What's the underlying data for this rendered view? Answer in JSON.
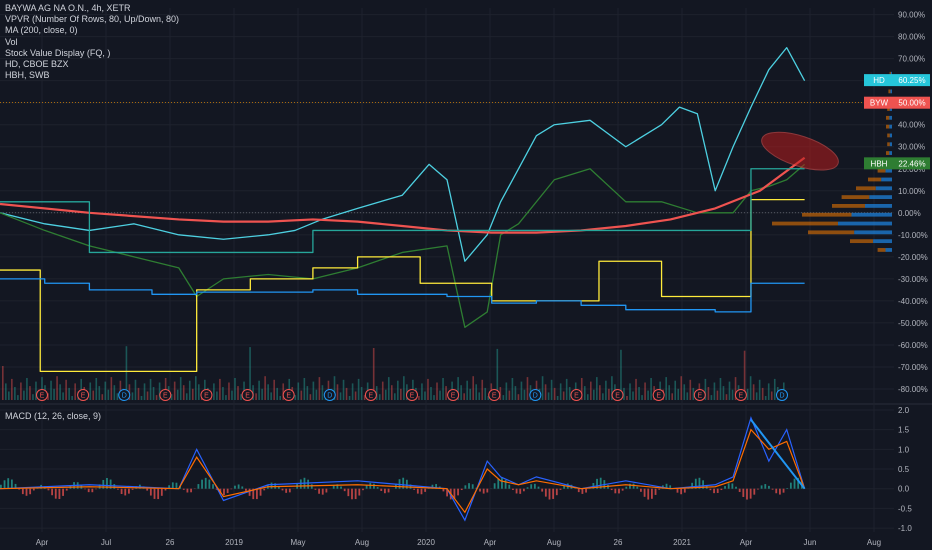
{
  "legend": {
    "title": "BAYWA AG NA O.N., 4h, XETR",
    "vpvr": "VPVR (Number Of Rows, 80, Up/Down, 80)",
    "ma": "MA (200, close, 0)",
    "vol": "Vol",
    "svd": "Stock Value Display (FQ, )",
    "hd": "HD, CBOE BZX",
    "hbh": "HBH, SWB"
  },
  "macd_legend": "MACD (12, 26, close, 9)",
  "colors": {
    "background": "#131722",
    "grid": "#1e222d",
    "baywa_line": "#2962ff",
    "ma": "#ef5350",
    "hd": "#4dd0e1",
    "hbh": "#2e7d32",
    "svd_yellow": "#ffeb3b",
    "svd_green": "#26a69a",
    "svd_blue": "#2196f3",
    "macd_line": "#2962ff",
    "signal_line": "#ff6d00",
    "hist_up": "#26a69a",
    "hist_down": "#ef5350",
    "callout": "#b71c1c"
  },
  "chart_data": [
    {
      "type": "line",
      "subtype": "percent-comparison",
      "y_axis_ticks": [
        "90.00%",
        "80.00%",
        "70.00%",
        "60.00%",
        "50.00%",
        "40.00%",
        "30.00%",
        "20.00%",
        "10.00%",
        "0.00%",
        "-10.00%",
        "-20.00%",
        "-30.00%",
        "-40.00%",
        "-50.00%",
        "-60.00%",
        "-70.00%",
        "-80.00%"
      ],
      "ylim": [
        -85,
        93
      ],
      "x_tick_labels": [
        "Apr",
        "Jul",
        "26",
        "2019",
        "May",
        "Aug",
        "2020",
        "Apr",
        "Aug",
        "26",
        "2021",
        "Apr",
        "Jun",
        "Aug"
      ],
      "last_value_tags": [
        {
          "label": "HD",
          "value": "60.25%",
          "y": 60.25
        },
        {
          "label": "BYW",
          "value": "50.00%",
          "y": 50.0
        },
        {
          "label": "HBH",
          "value": "22.46%",
          "y": 22.46
        }
      ],
      "series": [
        {
          "name": "HD",
          "key": "hd",
          "x": [
            0,
            0.05,
            0.1,
            0.15,
            0.2,
            0.25,
            0.3,
            0.33,
            0.36,
            0.4,
            0.45,
            0.48,
            0.5,
            0.52,
            0.545,
            0.56,
            0.58,
            0.6,
            0.62,
            0.66,
            0.7,
            0.74,
            0.76,
            0.78,
            0.8,
            0.82,
            0.84,
            0.86,
            0.88,
            0.9
          ],
          "values": [
            0,
            -5,
            -8,
            -5,
            -10,
            -12,
            -10,
            -8,
            -3,
            2,
            8,
            22,
            15,
            -22,
            -10,
            5,
            20,
            35,
            40,
            42,
            30,
            40,
            48,
            45,
            10,
            30,
            48,
            65,
            75,
            60
          ]
        },
        {
          "name": "HBH",
          "key": "hbh",
          "x": [
            0,
            0.05,
            0.1,
            0.15,
            0.2,
            0.22,
            0.25,
            0.3,
            0.35,
            0.4,
            0.45,
            0.5,
            0.52,
            0.545,
            0.56,
            0.58,
            0.62,
            0.66,
            0.7,
            0.74,
            0.78,
            0.82,
            0.84,
            0.86,
            0.88,
            0.9
          ],
          "values": [
            0,
            -8,
            -15,
            -20,
            -25,
            -38,
            -30,
            -28,
            -30,
            -25,
            -18,
            -15,
            -52,
            -45,
            -10,
            -5,
            15,
            20,
            5,
            5,
            0,
            0,
            10,
            12,
            15,
            22
          ]
        },
        {
          "name": "MA (200, close, 0)",
          "key": "ma",
          "x": [
            0,
            0.1,
            0.2,
            0.25,
            0.3,
            0.35,
            0.4,
            0.45,
            0.5,
            0.55,
            0.6,
            0.65,
            0.7,
            0.75,
            0.8,
            0.85,
            0.9
          ],
          "values": [
            4,
            0,
            -3,
            -4,
            -4,
            -3,
            -4,
            -6,
            -8,
            -9,
            -9,
            -8,
            -6,
            -3,
            2,
            10,
            25
          ]
        },
        {
          "name": "Stock Value Display yellow",
          "key": "svd_yellow",
          "x": [
            0,
            0.04,
            0.045,
            0.16,
            0.22,
            0.28,
            0.35,
            0.4,
            0.45,
            0.47,
            0.55,
            0.6,
            0.65,
            0.67,
            0.72,
            0.74,
            0.8,
            0.82,
            0.84,
            0.86,
            0.9
          ],
          "values": [
            -26,
            -26,
            -72,
            -72,
            -35,
            -30,
            -25,
            -20,
            -20,
            -32,
            -40,
            -40,
            -40,
            -22,
            -22,
            -38,
            -38,
            -38,
            6,
            6,
            6
          ],
          "step": true
        },
        {
          "name": "Stock Value Display green",
          "key": "svd_green",
          "x": [
            0,
            0.1,
            0.1,
            0.2,
            0.23,
            0.35,
            0.35,
            0.55,
            0.6,
            0.7,
            0.8,
            0.84,
            0.84,
            0.9
          ],
          "values": [
            5,
            5,
            -18,
            -18,
            -18,
            -18,
            -8,
            -8,
            -8,
            -8,
            -8,
            -8,
            20,
            20
          ],
          "step": true
        },
        {
          "name": "Stock Value Display blue",
          "key": "svd_blue",
          "x": [
            0,
            0.05,
            0.1,
            0.17,
            0.22,
            0.35,
            0.4,
            0.5,
            0.55,
            0.6,
            0.65,
            0.7,
            0.74,
            0.8,
            0.84,
            0.84,
            0.9
          ],
          "values": [
            -30,
            -32,
            -35,
            -37,
            -36,
            -35,
            -37,
            -38,
            -41,
            -40,
            -42,
            -44,
            -44,
            -45,
            -45,
            -32,
            -32
          ],
          "step": true
        }
      ],
      "volume_profile": {
        "bins": [
          -18,
          -14,
          -10,
          -6,
          -2,
          2,
          6,
          10,
          14,
          18,
          22,
          26,
          30,
          34,
          38,
          42,
          46,
          50,
          54,
          58,
          62
        ],
        "volume": [
          0.12,
          0.35,
          0.7,
          1.0,
          0.75,
          0.5,
          0.42,
          0.3,
          0.2,
          0.12,
          0.08,
          0.05,
          0.04,
          0.04,
          0.05,
          0.05,
          0.04,
          0.03,
          0.03,
          0.02,
          0.02
        ]
      },
      "event_markers": [
        {
          "label": "E",
          "kind": "earnings"
        },
        {
          "label": "E",
          "kind": "earnings"
        },
        {
          "label": "D",
          "kind": "dividend"
        },
        {
          "label": "E",
          "kind": "earnings"
        },
        {
          "label": "E",
          "kind": "earnings"
        },
        {
          "label": "E",
          "kind": "earnings"
        },
        {
          "label": "E",
          "kind": "earnings"
        },
        {
          "label": "D",
          "kind": "dividend"
        },
        {
          "label": "E",
          "kind": "earnings"
        },
        {
          "label": "E",
          "kind": "earnings"
        },
        {
          "label": "E",
          "kind": "earnings"
        },
        {
          "label": "E",
          "kind": "earnings"
        },
        {
          "label": "D",
          "kind": "dividend"
        },
        {
          "label": "E",
          "kind": "earnings"
        },
        {
          "label": "E",
          "kind": "earnings"
        },
        {
          "label": "E",
          "kind": "earnings"
        },
        {
          "label": "E",
          "kind": "earnings"
        },
        {
          "label": "E",
          "kind": "earnings"
        },
        {
          "label": "D",
          "kind": "dividend"
        }
      ]
    },
    {
      "type": "line",
      "subtype": "macd-oscillator",
      "y_axis_ticks": [
        "2.0",
        "1.5",
        "1.0",
        "0.5",
        "0.0",
        "-0.5",
        "-1.0"
      ],
      "ylim": [
        -1.1,
        2.1
      ],
      "series": [
        {
          "name": "MACD",
          "key": "macd_line",
          "x": [
            0,
            0.1,
            0.2,
            0.22,
            0.25,
            0.3,
            0.4,
            0.45,
            0.5,
            0.52,
            0.545,
            0.56,
            0.58,
            0.6,
            0.65,
            0.7,
            0.75,
            0.8,
            0.82,
            0.84,
            0.86,
            0.88,
            0.9
          ],
          "values": [
            0,
            0.1,
            0,
            1.0,
            -0.3,
            0.1,
            0.2,
            0.1,
            0,
            -0.8,
            0.7,
            0.3,
            0.1,
            0.3,
            0,
            0.2,
            0,
            0.1,
            0.3,
            1.8,
            0.7,
            1.5,
            0
          ]
        },
        {
          "name": "Signal",
          "key": "signal_line",
          "x": [
            0,
            0.1,
            0.2,
            0.22,
            0.25,
            0.3,
            0.4,
            0.45,
            0.5,
            0.52,
            0.545,
            0.56,
            0.58,
            0.6,
            0.65,
            0.7,
            0.75,
            0.8,
            0.82,
            0.84,
            0.86,
            0.88,
            0.9
          ],
          "values": [
            0,
            0.05,
            0,
            0.8,
            -0.2,
            0.05,
            0.1,
            0.05,
            0,
            -0.6,
            0.5,
            0.2,
            0.1,
            0.2,
            0,
            0.1,
            0,
            0.05,
            0.2,
            1.5,
            1.0,
            1.2,
            0
          ]
        }
      ]
    }
  ]
}
